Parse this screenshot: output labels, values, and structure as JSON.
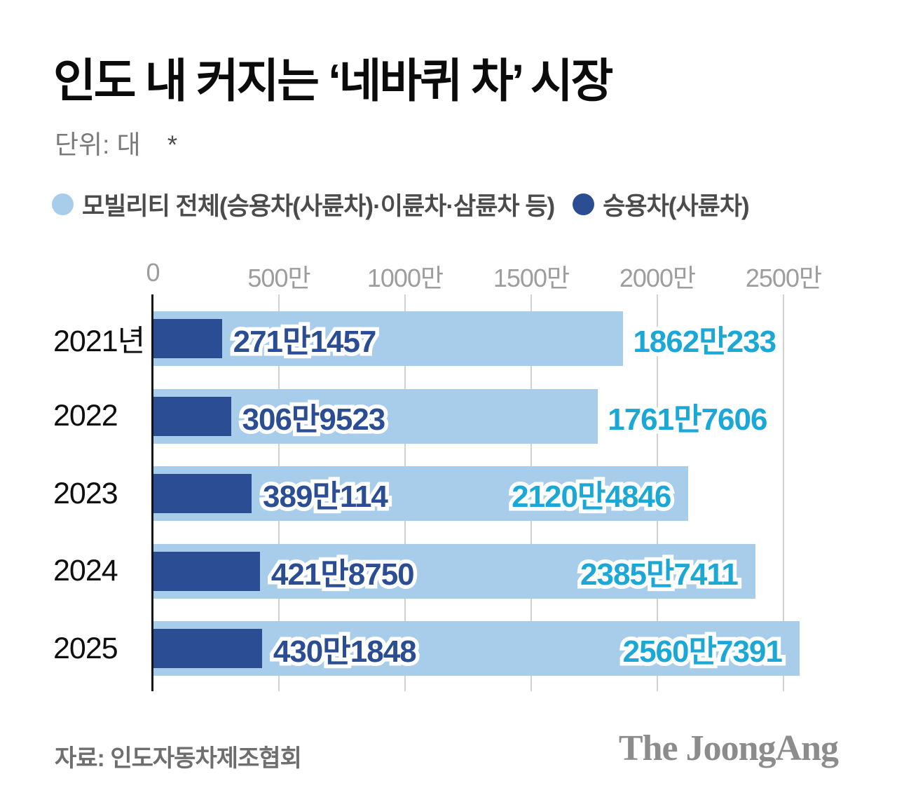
{
  "header": {
    "title": "인도 내 커지는 ‘네바퀴 차’ 시장",
    "unit_label": "단위: 대",
    "footnote_mark": "*"
  },
  "legend": [
    {
      "label": "모빌리티 전체(승용차(사륜차)·이륜차·삼륜차 등)",
      "color": "#a8cdeb"
    },
    {
      "label": "승용차(사륜차)",
      "color": "#2a4d94"
    }
  ],
  "chart_data": {
    "type": "bar",
    "orientation": "horizontal",
    "unit": "대",
    "categories": [
      "2021년",
      "2022",
      "2023",
      "2024",
      "2025"
    ],
    "series": [
      {
        "name": "모빌리티 전체(승용차(사륜차)·이륜차·삼륜차 등)",
        "color": "#a8cdeb",
        "label_color": "#1ba8d6",
        "values": [
          18620233,
          17617606,
          21204846,
          23857411,
          25607391
        ],
        "value_labels": [
          "1862만233",
          "1761만7606",
          "2120만4846",
          "2385만7411",
          "2560만7391"
        ]
      },
      {
        "name": "승용차(사륜차)",
        "color": "#2a4d94",
        "label_color": "#2a4d94",
        "values": [
          2711457,
          3069523,
          3890114,
          4218750,
          4301848
        ],
        "value_labels": [
          "271만1457",
          "306만9523",
          "389만114",
          "421만8750",
          "430만1848"
        ]
      }
    ],
    "x_axis": {
      "max": 25000000,
      "ticks": [
        0,
        5000000,
        10000000,
        15000000,
        20000000,
        25000000
      ],
      "tick_labels": [
        "0",
        "500만",
        "1000만",
        "1500만",
        "2000만",
        "2500만"
      ]
    },
    "grid": true,
    "legend_position": "top",
    "axis_color": "#141414",
    "grid_color": "#d2d2d2"
  },
  "footer": {
    "source": "자료: 인도자동차제조협회",
    "logo": "The JoongAng"
  }
}
